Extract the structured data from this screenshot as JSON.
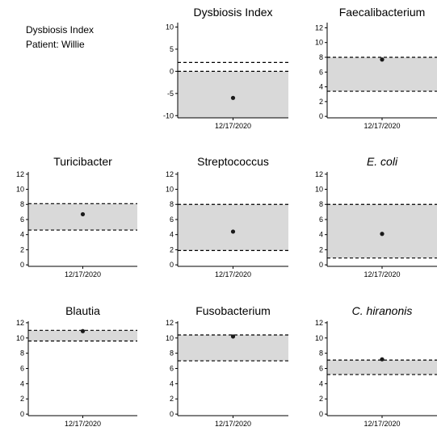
{
  "header": {
    "title": "Dysbiosis Index",
    "patient": "Patient: Willie"
  },
  "colors": {
    "band": "#d9d9d9",
    "point": "#1a1a1a",
    "axis": "#000000"
  },
  "chart_data": [
    {
      "type": "scatter",
      "title": "Dysbiosis Index",
      "italic": false,
      "categories": [
        "12/17/2020"
      ],
      "values": [
        -6
      ],
      "ylim": [
        -10.5,
        11
      ],
      "yticks": [
        10,
        5,
        0,
        -5,
        -10
      ],
      "band": [
        -10.5,
        0
      ],
      "dashed": [
        0,
        2
      ]
    },
    {
      "type": "scatter",
      "title": "Faecalibacterium",
      "italic": false,
      "categories": [
        "12/17/2020"
      ],
      "values": [
        7.7
      ],
      "ylim": [
        -0.2,
        12.7
      ],
      "yticks": [
        12,
        10,
        8,
        6,
        4,
        2,
        0
      ],
      "band": [
        3.4,
        8
      ],
      "dashed": [
        3.4,
        8
      ]
    },
    {
      "type": "scatter",
      "title": "Turicibacter",
      "italic": false,
      "categories": [
        "12/17/2020"
      ],
      "values": [
        6.7
      ],
      "ylim": [
        -0.2,
        12.3
      ],
      "yticks": [
        12,
        10,
        8,
        6,
        4,
        2,
        0
      ],
      "band": [
        4.6,
        8.1
      ],
      "dashed": [
        4.6,
        8.1
      ]
    },
    {
      "type": "scatter",
      "title": "Streptococcus",
      "italic": false,
      "categories": [
        "12/17/2020"
      ],
      "values": [
        4.4
      ],
      "ylim": [
        -0.2,
        12.3
      ],
      "yticks": [
        12,
        10,
        8,
        6,
        4,
        2,
        0
      ],
      "band": [
        1.9,
        8
      ],
      "dashed": [
        1.9,
        8
      ]
    },
    {
      "type": "scatter",
      "title": "E. coli",
      "italic": true,
      "categories": [
        "12/17/2020"
      ],
      "values": [
        4.1
      ],
      "ylim": [
        -0.2,
        12.3
      ],
      "yticks": [
        12,
        10,
        8,
        6,
        4,
        2,
        0
      ],
      "band": [
        0.9,
        8
      ],
      "dashed": [
        0.9,
        8
      ]
    },
    {
      "type": "scatter",
      "title": "Blautia",
      "italic": false,
      "categories": [
        "12/17/2020"
      ],
      "values": [
        10.9
      ],
      "ylim": [
        -0.2,
        12.2
      ],
      "yticks": [
        12,
        10,
        8,
        6,
        4,
        2,
        0
      ],
      "band": [
        9.6,
        11
      ],
      "dashed": [
        9.6,
        11
      ]
    },
    {
      "type": "scatter",
      "title": "Fusobacterium",
      "italic": false,
      "categories": [
        "12/17/2020"
      ],
      "values": [
        10.2
      ],
      "ylim": [
        -0.2,
        12.2
      ],
      "yticks": [
        12,
        10,
        8,
        6,
        4,
        2,
        0
      ],
      "band": [
        7,
        10.4
      ],
      "dashed": [
        7,
        10.4
      ]
    },
    {
      "type": "scatter",
      "title": "C. hiranonis",
      "italic": true,
      "categories": [
        "12/17/2020"
      ],
      "values": [
        7.2
      ],
      "ylim": [
        -0.2,
        12.2
      ],
      "yticks": [
        12,
        10,
        8,
        6,
        4,
        2,
        0
      ],
      "band": [
        5.2,
        7.1
      ],
      "dashed": [
        5.2,
        7.1
      ]
    }
  ]
}
